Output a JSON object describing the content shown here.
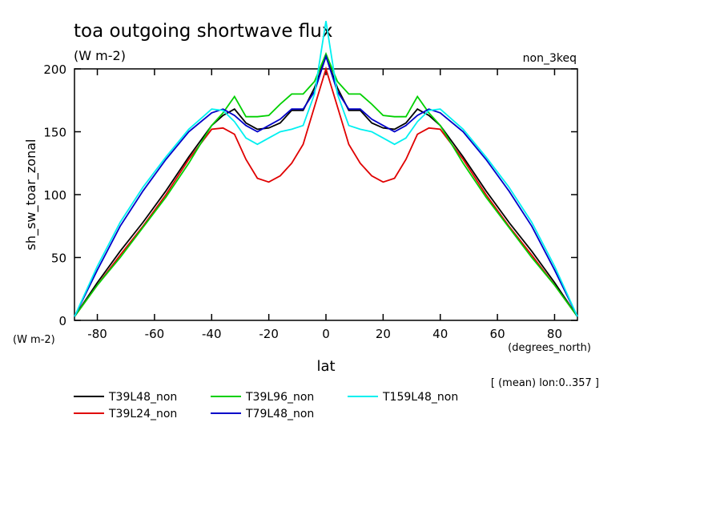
{
  "chart_data": {
    "type": "line",
    "title": "toa outgoing shortwave flux",
    "subtitle": "(W m-2)",
    "annotation": "non_3keq",
    "y_label": "sh_sw_toar_zonal",
    "y_units": "(W m-2)",
    "x_label": "lat",
    "x_units": "(degrees_north)",
    "note": "[ (mean) lon:0..357 ]",
    "x": [
      -88,
      -80,
      -72,
      -64,
      -56,
      -48,
      -40,
      -36,
      -32,
      -28,
      -24,
      -20,
      -16,
      -12,
      -8,
      -4,
      0,
      4,
      8,
      12,
      16,
      20,
      24,
      28,
      32,
      36,
      40,
      48,
      56,
      64,
      72,
      80,
      88
    ],
    "series": [
      {
        "name": "T39L48_non",
        "color": "#000000",
        "values": [
          3,
          30,
          55,
          78,
          103,
          130,
          155,
          163,
          168,
          157,
          152,
          153,
          157,
          167,
          167,
          185,
          210,
          185,
          167,
          167,
          157,
          153,
          152,
          157,
          168,
          163,
          155,
          130,
          103,
          78,
          55,
          30,
          3
        ]
      },
      {
        "name": "T39L24_non",
        "color": "#e00000",
        "values": [
          3,
          28,
          52,
          75,
          100,
          128,
          152,
          153,
          148,
          128,
          113,
          110,
          115,
          125,
          140,
          170,
          200,
          170,
          140,
          125,
          115,
          110,
          113,
          128,
          148,
          153,
          152,
          128,
          100,
          75,
          52,
          28,
          3
        ]
      },
      {
        "name": "T39L96_non",
        "color": "#00d000",
        "values": [
          3,
          28,
          50,
          74,
          98,
          125,
          155,
          165,
          178,
          162,
          162,
          163,
          172,
          180,
          180,
          190,
          212,
          190,
          180,
          180,
          172,
          163,
          162,
          162,
          178,
          165,
          155,
          125,
          98,
          74,
          50,
          28,
          3
        ]
      },
      {
        "name": "T79L48_non",
        "color": "#0000c8",
        "values": [
          3,
          40,
          75,
          103,
          128,
          150,
          165,
          168,
          163,
          155,
          150,
          155,
          160,
          168,
          168,
          182,
          210,
          182,
          168,
          168,
          160,
          155,
          150,
          155,
          163,
          168,
          165,
          150,
          128,
          103,
          75,
          40,
          3
        ]
      },
      {
        "name": "T159L48_non",
        "color": "#00f0f0",
        "values": [
          3,
          43,
          78,
          106,
          130,
          152,
          168,
          167,
          158,
          145,
          140,
          145,
          150,
          152,
          155,
          180,
          238,
          180,
          155,
          152,
          150,
          145,
          140,
          145,
          158,
          167,
          168,
          152,
          130,
          106,
          78,
          43,
          3
        ]
      }
    ],
    "xlim": [
      -88,
      88
    ],
    "ylim": [
      0,
      200
    ],
    "xticks": [
      -80,
      -60,
      -40,
      -20,
      0,
      20,
      40,
      60,
      80
    ],
    "yticks": [
      0,
      50,
      100,
      150,
      200
    ]
  }
}
